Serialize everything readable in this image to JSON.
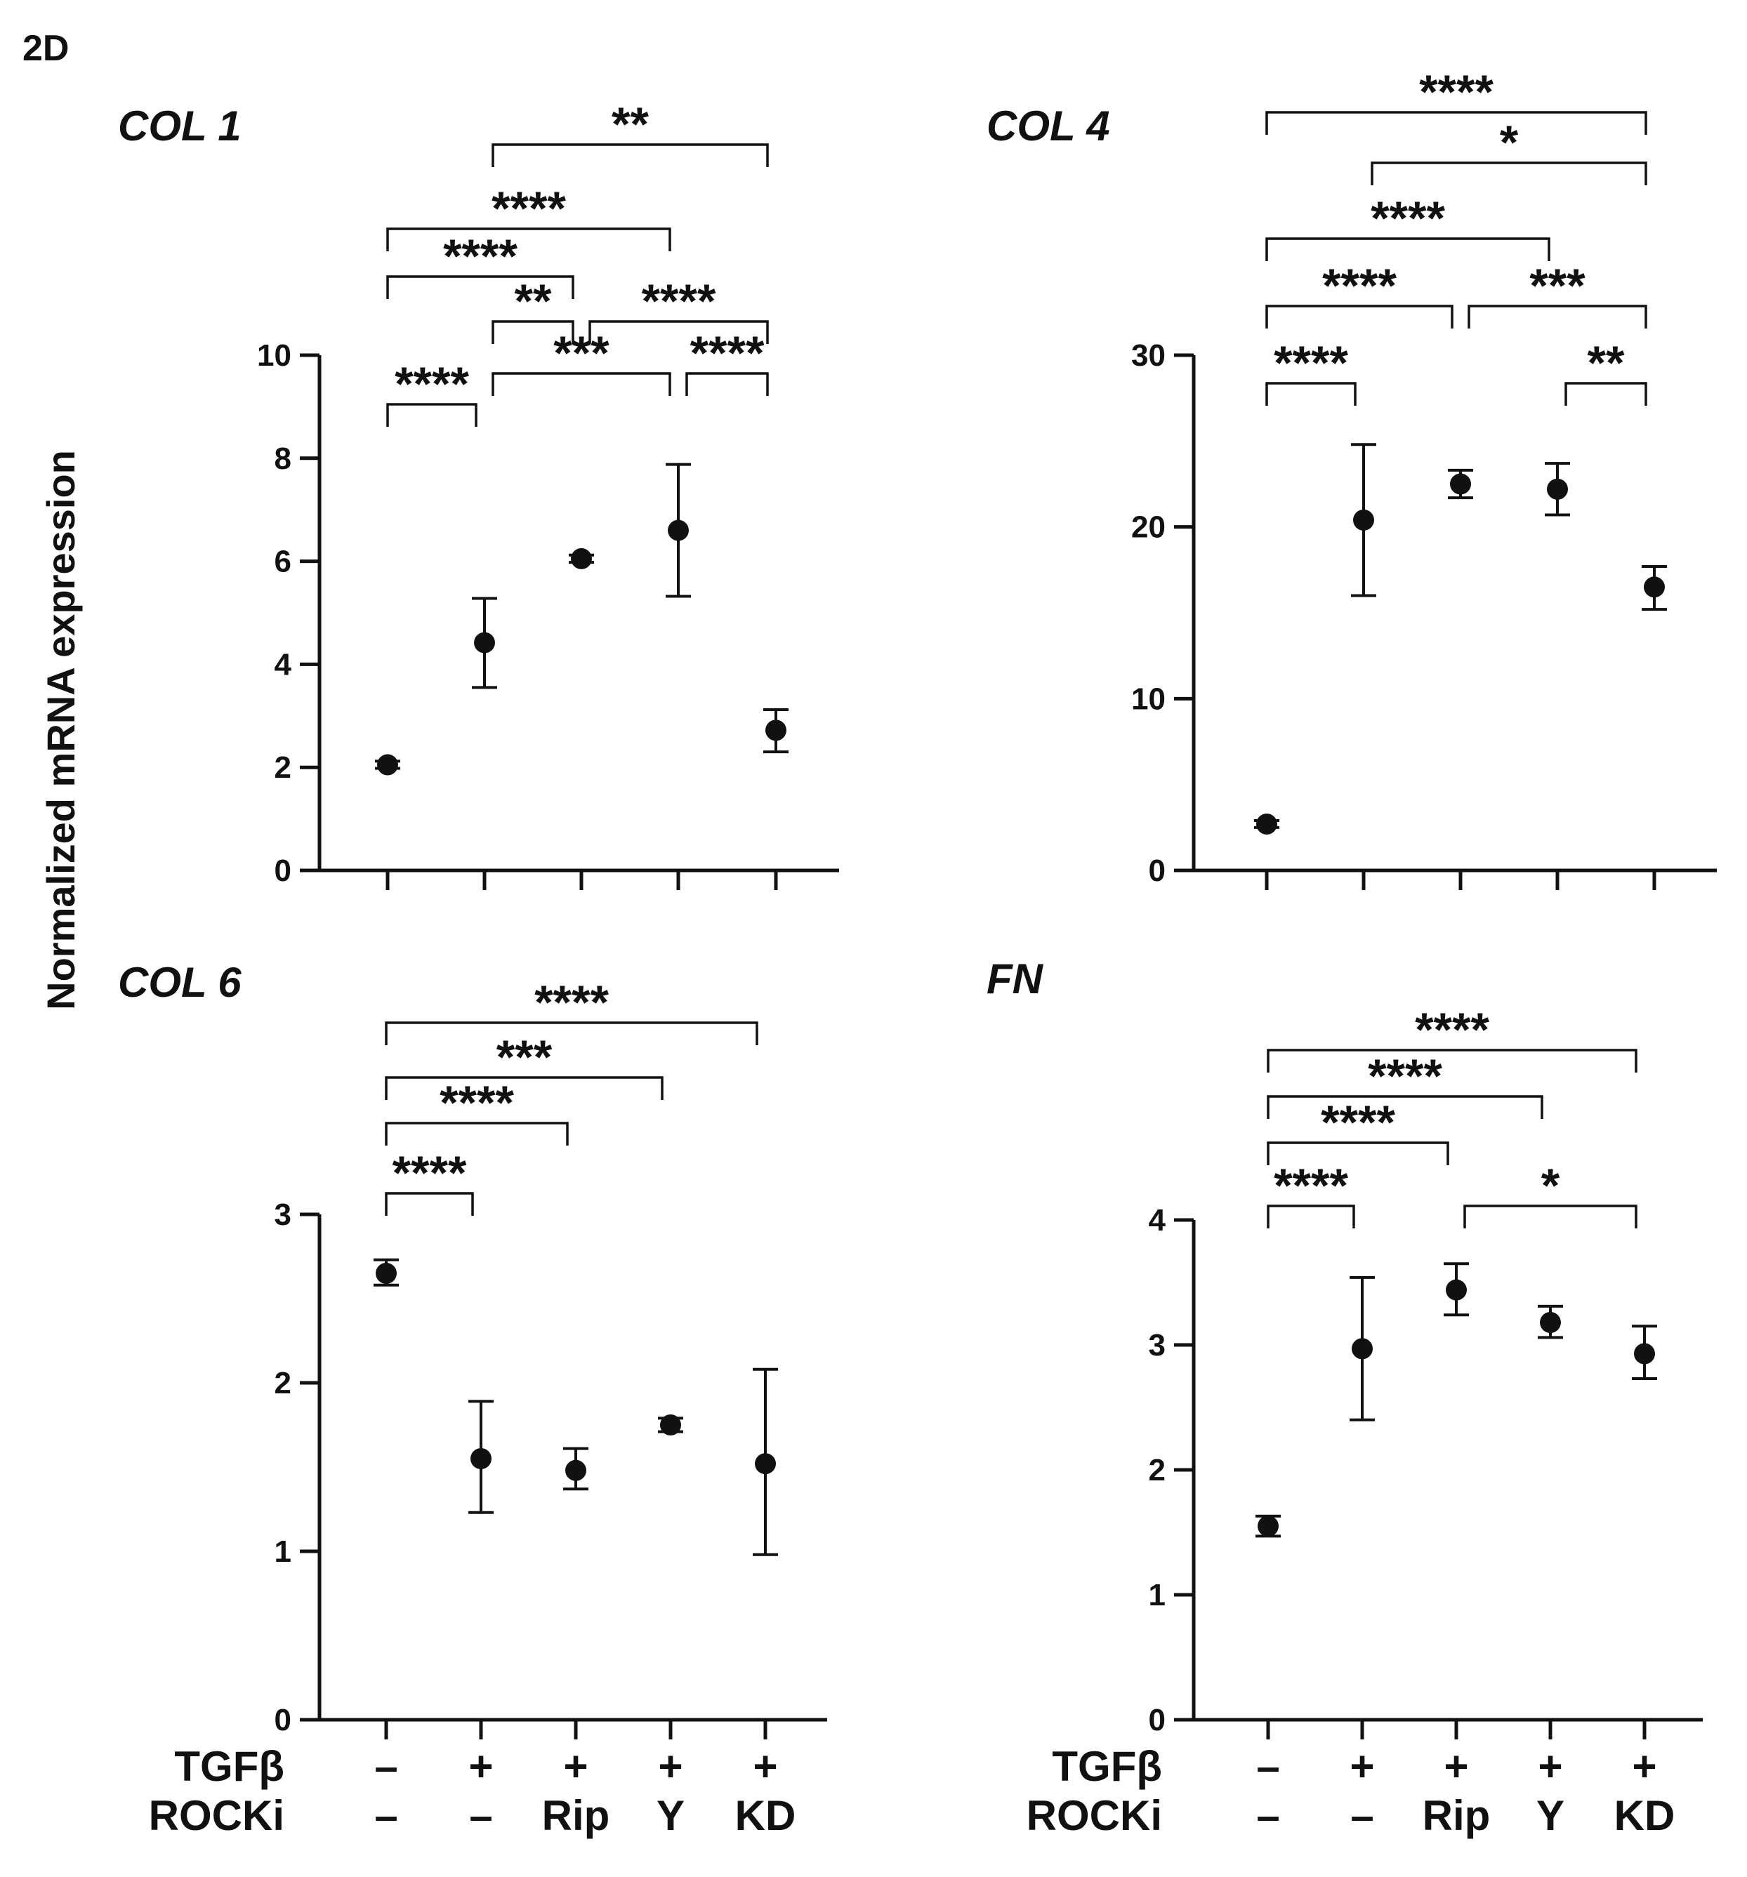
{
  "panel_label": "2D",
  "y_axis_label": "Normalized mRNA expression",
  "conditions": {
    "row_labels": [
      "TGFβ",
      "ROCKi"
    ],
    "tgfb": [
      "–",
      "+",
      "+",
      "+",
      "+"
    ],
    "rocki": [
      "–",
      "–",
      "Rip",
      "Y",
      "KD"
    ]
  },
  "chart_data": [
    {
      "type": "scatter",
      "title": "COL 1",
      "ylabel": "Normalized mRNA expression",
      "ylim": [
        0,
        10
      ],
      "yticks": [
        0,
        2,
        4,
        6,
        8,
        10
      ],
      "x": [
        0,
        1,
        2,
        3,
        4
      ],
      "values": [
        2.05,
        4.42,
        6.05,
        6.6,
        2.72
      ],
      "err_low": [
        1.98,
        3.55,
        5.98,
        5.32,
        2.3
      ],
      "err_high": [
        2.12,
        5.28,
        6.12,
        7.88,
        3.12
      ],
      "comparisons": [
        {
          "from": 0,
          "to": 1,
          "label": "****"
        },
        {
          "from": 1,
          "to": 3,
          "label": "***"
        },
        {
          "from": 3,
          "to": 4,
          "label": "****"
        },
        {
          "from": 1,
          "to": 2,
          "label": "**"
        },
        {
          "from": 2,
          "to": 4,
          "label": "****"
        },
        {
          "from": 0,
          "to": 2,
          "label": "****"
        },
        {
          "from": 0,
          "to": 3,
          "label": "****"
        },
        {
          "from": 1,
          "to": 4,
          "label": "**"
        }
      ]
    },
    {
      "type": "scatter",
      "title": "COL 4",
      "ylabel": "Normalized mRNA expression",
      "ylim": [
        0,
        30
      ],
      "yticks": [
        0,
        10,
        20,
        30
      ],
      "x": [
        0,
        1,
        2,
        3,
        4
      ],
      "values": [
        2.7,
        20.4,
        22.5,
        22.2,
        16.5
      ],
      "err_low": [
        2.5,
        16.0,
        21.7,
        20.7,
        15.2
      ],
      "err_high": [
        2.9,
        24.8,
        23.3,
        23.7,
        17.7
      ],
      "comparisons": [
        {
          "from": 0,
          "to": 1,
          "label": "****"
        },
        {
          "from": 3,
          "to": 4,
          "label": "**"
        },
        {
          "from": 0,
          "to": 2,
          "label": "****"
        },
        {
          "from": 2,
          "to": 4,
          "label": "***"
        },
        {
          "from": 0,
          "to": 3,
          "label": "****"
        },
        {
          "from": 1,
          "to": 4,
          "label": "*"
        },
        {
          "from": 0,
          "to": 4,
          "label": "****"
        }
      ]
    },
    {
      "type": "scatter",
      "title": "COL 6",
      "ylabel": "Normalized mRNA expression",
      "ylim": [
        0,
        3
      ],
      "yticks": [
        0,
        1,
        2,
        3
      ],
      "x": [
        0,
        1,
        2,
        3,
        4
      ],
      "values": [
        2.65,
        1.55,
        1.48,
        1.75,
        1.52
      ],
      "err_low": [
        2.58,
        1.23,
        1.37,
        1.71,
        0.98
      ],
      "err_high": [
        2.73,
        1.89,
        1.61,
        1.79,
        2.08
      ],
      "comparisons": [
        {
          "from": 0,
          "to": 1,
          "label": "****"
        },
        {
          "from": 0,
          "to": 2,
          "label": "****"
        },
        {
          "from": 0,
          "to": 3,
          "label": "***"
        },
        {
          "from": 0,
          "to": 4,
          "label": "****"
        }
      ]
    },
    {
      "type": "scatter",
      "title": "FN",
      "ylabel": "Normalized mRNA expression",
      "ylim": [
        0,
        4
      ],
      "yticks": [
        0,
        1,
        2,
        3,
        4
      ],
      "x": [
        0,
        1,
        2,
        3,
        4
      ],
      "values": [
        1.55,
        2.97,
        3.44,
        3.18,
        2.93
      ],
      "err_low": [
        1.47,
        2.4,
        3.24,
        3.06,
        2.73
      ],
      "err_high": [
        1.63,
        3.54,
        3.65,
        3.31,
        3.15
      ],
      "comparisons": [
        {
          "from": 0,
          "to": 1,
          "label": "****"
        },
        {
          "from": 2,
          "to": 4,
          "label": "*"
        },
        {
          "from": 0,
          "to": 2,
          "label": "****"
        },
        {
          "from": 0,
          "to": 3,
          "label": "****"
        },
        {
          "from": 0,
          "to": 4,
          "label": "****"
        }
      ]
    }
  ]
}
